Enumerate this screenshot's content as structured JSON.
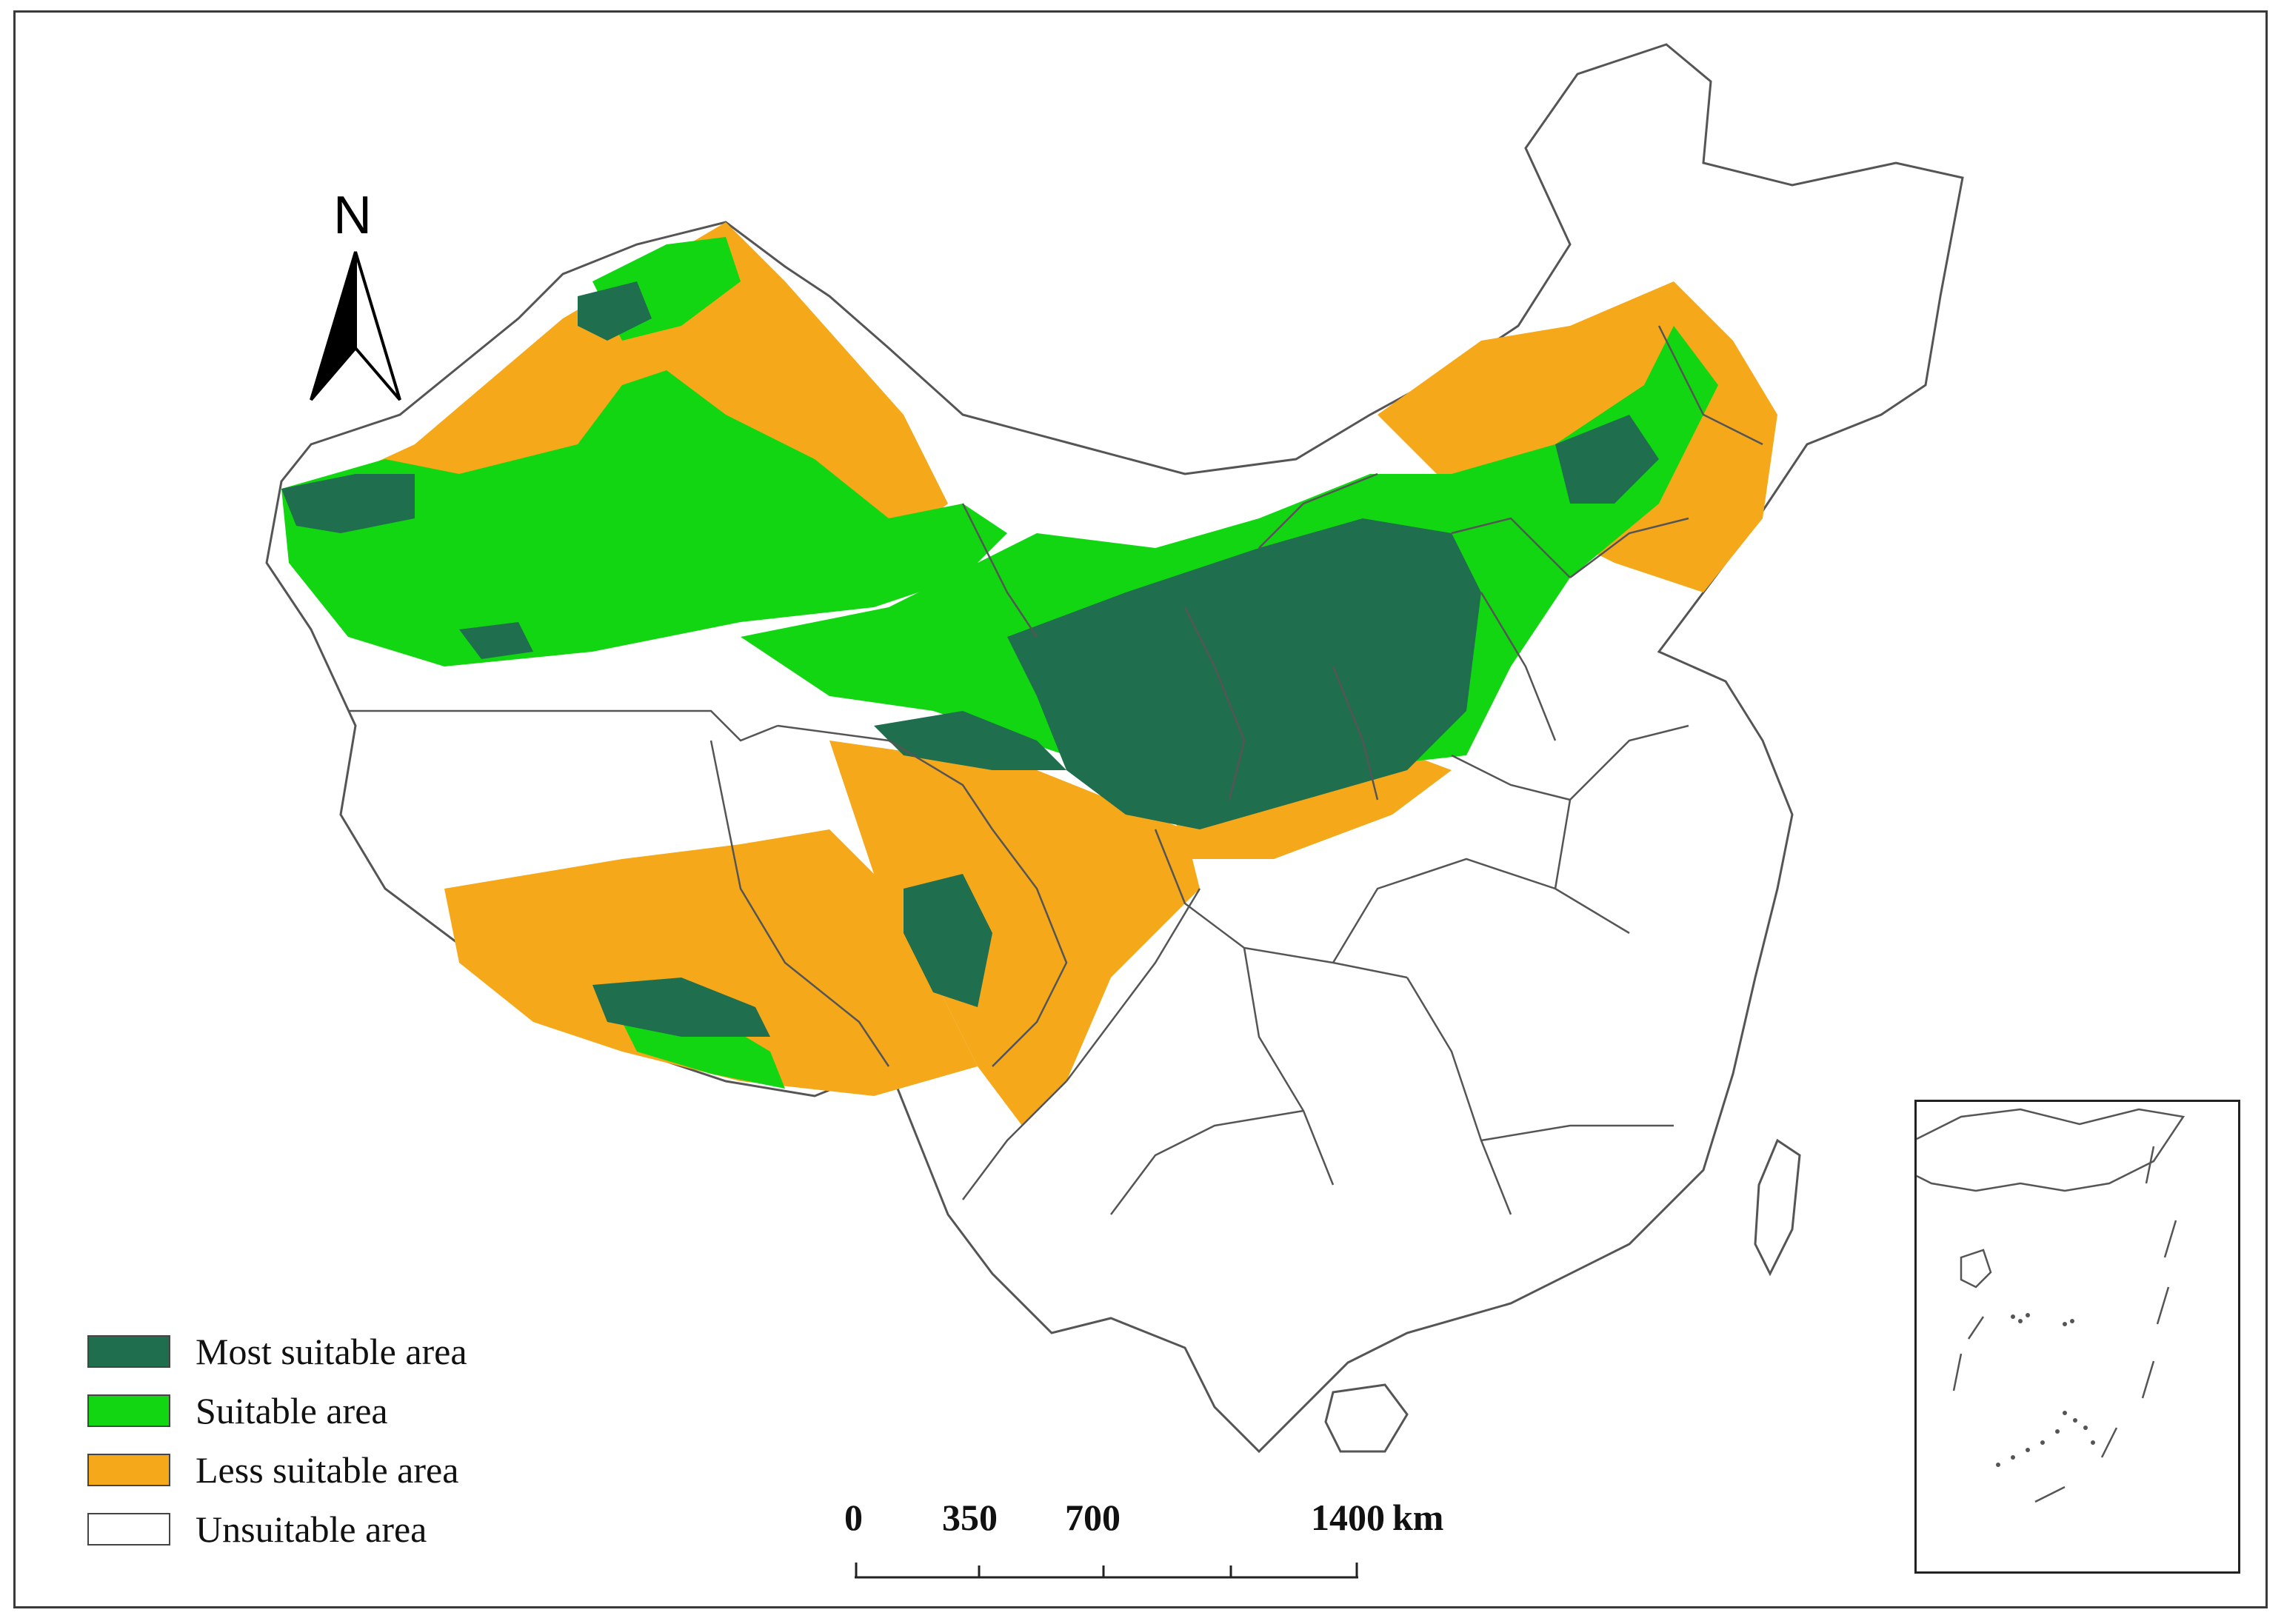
{
  "map": {
    "north_label": "N",
    "colors": {
      "most_suitable": "#1f6e4e",
      "suitable": "#12d612",
      "less_suitable": "#f5a81a",
      "unsuitable": "#ffffff",
      "boundary": "#555555"
    }
  },
  "legend": {
    "items": [
      {
        "label": "Most suitable area",
        "color": "#1f6e4e"
      },
      {
        "label": "Suitable area",
        "color": "#12d612"
      },
      {
        "label": "Less suitable area",
        "color": "#f5a81a"
      },
      {
        "label": "Unsuitable area",
        "color": "#ffffff"
      }
    ]
  },
  "scale_bar": {
    "ticks": [
      "0",
      "350",
      "700",
      "1400"
    ],
    "unit": "km"
  }
}
